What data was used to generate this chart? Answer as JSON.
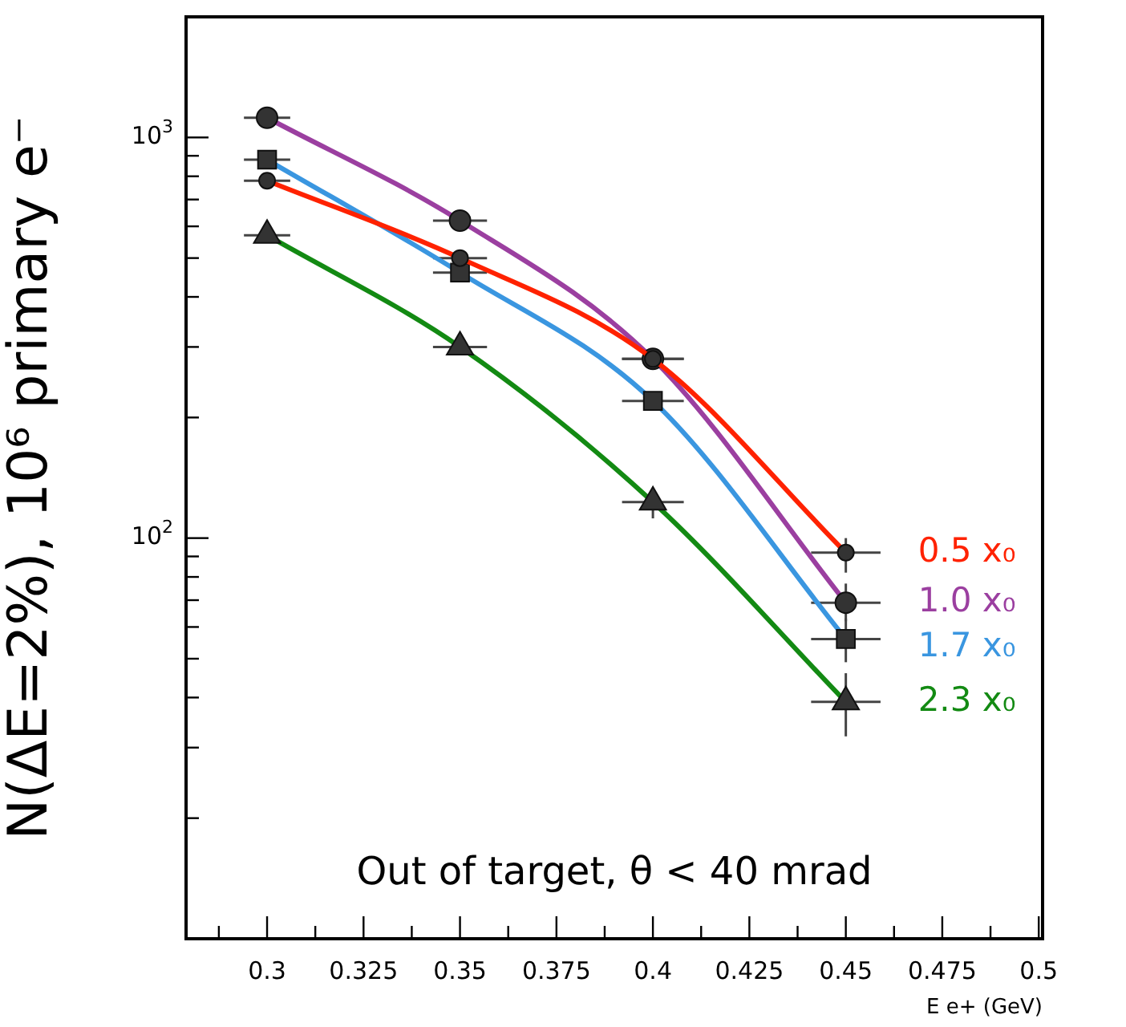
{
  "chart_data": {
    "type": "line",
    "ylabel": "N(ΔE=2%), 10⁶ primary e⁻",
    "xlabel": "E e+ (GeV)",
    "annotations": [
      "Out of target, θ < 40 mrad"
    ],
    "x": [
      0.3,
      0.35,
      0.4,
      0.45
    ],
    "log": "y",
    "grid": false,
    "legend": false,
    "line_style": "solid",
    "xlim": [
      0.279,
      0.501
    ],
    "xticks": [
      {
        "value": 0.2875,
        "label": null
      },
      0.3,
      {
        "value": 0.3125,
        "label": null
      },
      0.325,
      {
        "value": 0.3375,
        "label": null
      },
      0.35,
      {
        "value": 0.3625,
        "label": null
      },
      0.375,
      {
        "value": 0.3875,
        "label": null
      },
      0.4,
      {
        "value": 0.4125,
        "label": null
      },
      0.425,
      {
        "value": 0.4375,
        "label": null
      },
      0.45,
      {
        "value": 0.4625,
        "label": null
      },
      0.475,
      {
        "value": 0.4875,
        "label": null
      },
      0.5
    ],
    "ylim": [
      10,
      2000
    ],
    "yticks": [
      {
        "value": 20,
        "label": null
      },
      {
        "value": 30,
        "label": null
      },
      {
        "value": 40,
        "label": null
      },
      {
        "value": 50,
        "label": null
      },
      {
        "value": 60,
        "label": null
      },
      {
        "value": 70,
        "label": null
      },
      {
        "value": 80,
        "label": null
      },
      {
        "value": 90,
        "label": null
      },
      {
        "value": 100,
        "label": "10$^{2}$"
      },
      {
        "value": 200,
        "label": null
      },
      {
        "value": 300,
        "label": null
      },
      {
        "value": 400,
        "label": null
      },
      {
        "value": 500,
        "label": null
      },
      {
        "value": 600,
        "label": null
      },
      {
        "value": 700,
        "label": null
      },
      {
        "value": 800,
        "label": null
      },
      {
        "value": 900,
        "label": null
      },
      {
        "value": 1000,
        "label": "10$^{3}$"
      },
      {
        "value": 2000,
        "label": null
      }
    ],
    "series": [
      {
        "name": "0.5 x₀",
        "color": "#ff2200",
        "marker": "circle",
        "values": [
          780,
          500,
          280,
          92
        ],
        "errors": [
          null,
          null,
          null,
          [
            82,
            100
          ]
        ],
        "xerrors": [
          0.006,
          0.007,
          0.008,
          0.009
        ]
      },
      {
        "name": "1.0 x₀",
        "color": "#9b3fa0",
        "marker": "circle",
        "values": [
          1120,
          620,
          280,
          69
        ],
        "errors": [
          null,
          null,
          null,
          [
            62,
            77
          ]
        ],
        "xerrors": [
          0.006,
          0.007,
          0.008,
          0.009
        ]
      },
      {
        "name": "1.7 x₀",
        "color": "#3a96e0",
        "marker": "square",
        "values": [
          880,
          460,
          220,
          56
        ],
        "errors": [
          null,
          null,
          null,
          [
            49,
            63
          ]
        ],
        "xerrors": [
          0.006,
          0.007,
          0.008,
          0.009
        ]
      },
      {
        "name": "2.3 x₀",
        "color": "#138a13",
        "marker": "triangle",
        "values": [
          570,
          300,
          123,
          39
        ],
        "errors": [
          null,
          null,
          [
            112,
            131
          ],
          [
            32,
            46
          ]
        ],
        "xerrors": [
          0.006,
          0.007,
          0.008,
          0.009
        ]
      }
    ]
  }
}
